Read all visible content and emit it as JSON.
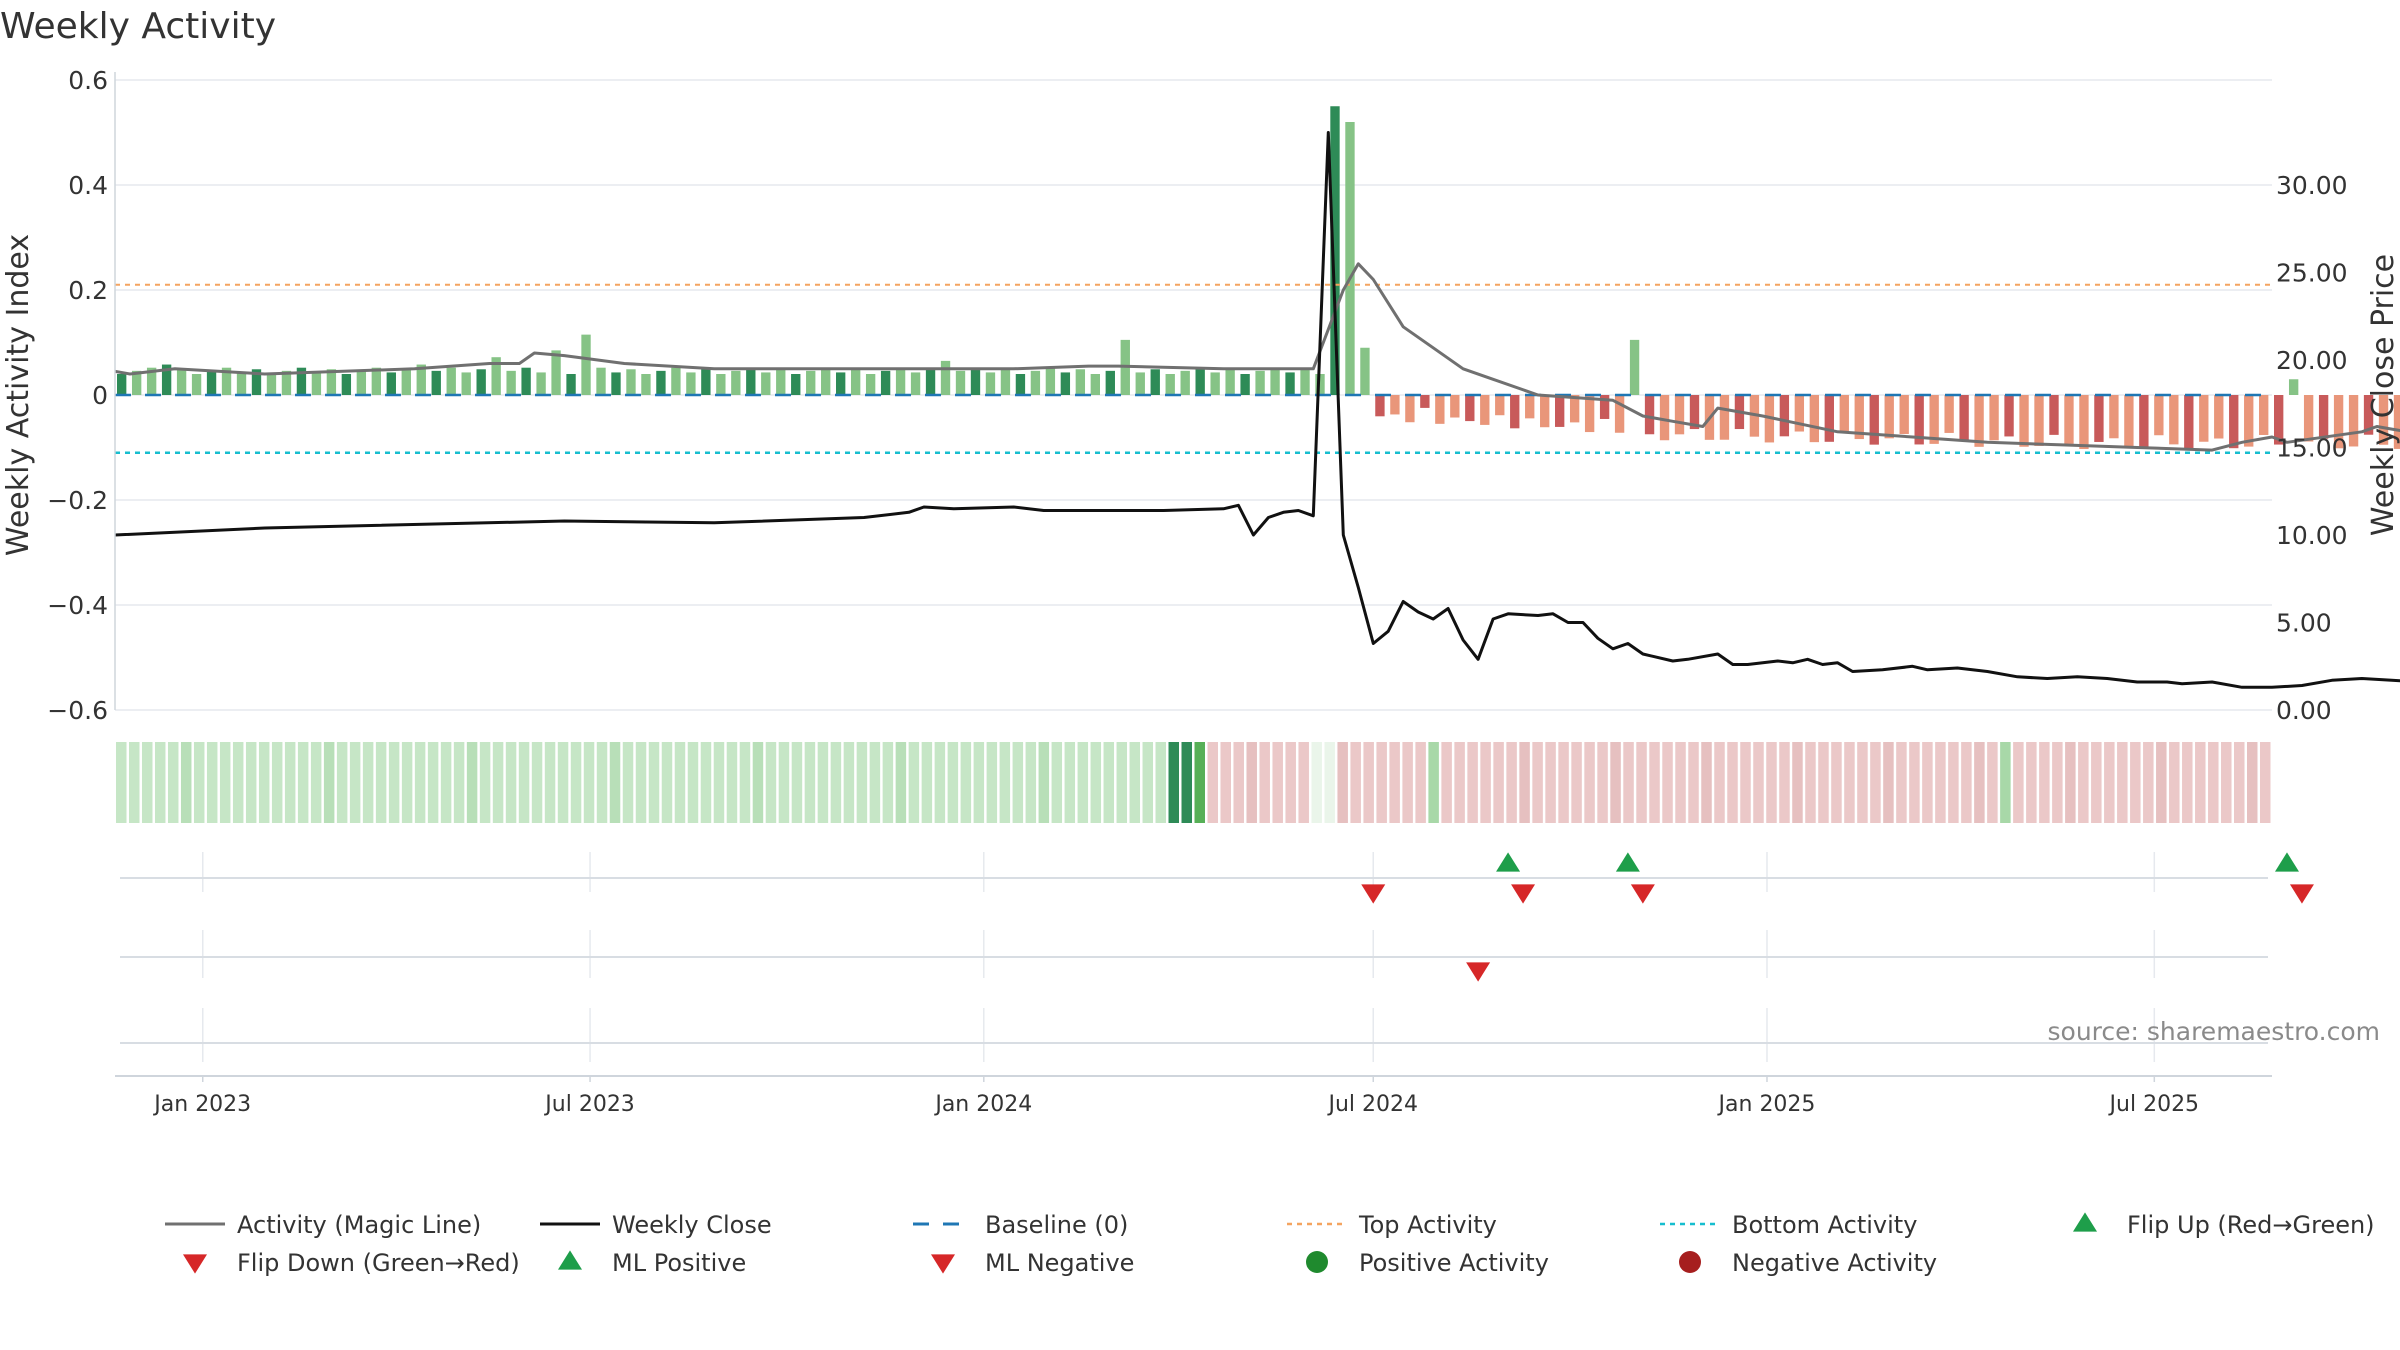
{
  "chart_data": {
    "type": "bar",
    "title": "Weekly Activity",
    "source": "source: sharemaestro.com",
    "y_left": {
      "label": "Weekly Activity Index",
      "ylim": [
        -0.6,
        0.6
      ],
      "ticks": [
        "0.6",
        "0.4",
        "0.2",
        "0",
        "−0.2",
        "−0.4",
        "−0.6"
      ]
    },
    "y_right": {
      "label": "Weekly Close Price",
      "ylim": [
        0,
        30
      ],
      "ticks": [
        "30.00",
        "25.00",
        "20.00",
        "15.00",
        "10.00",
        "5.00",
        "0.00"
      ]
    },
    "x_ticks": [
      "Jan 2023",
      "Jul 2023",
      "Jan 2024",
      "Jul 2024",
      "Jan 2025",
      "Jul 2025"
    ],
    "x_tick_dates": [
      "2023-01-01",
      "2023-07-01",
      "2024-01-01",
      "2024-07-01",
      "2025-01-01",
      "2025-07-01"
    ],
    "x_range": [
      "2022-11-21",
      "2025-08-25"
    ],
    "week_start": "2022-11-21",
    "week_count": 146,
    "top_activity": 0.21,
    "bottom_activity": -0.11,
    "grid": true,
    "legend_position": "bottom",
    "colors": {
      "positive_dark": "#2e8b57",
      "positive_light": "#86c386",
      "negative_dark": "#c85a5a",
      "negative_light": "#e9967a",
      "magic_line": "#707070",
      "weekly_close": "#111111",
      "baseline": "#1f77b4",
      "top_activity": "#f4a460",
      "bottom_activity": "#17becf",
      "flip_up": "#1e9e4a",
      "flip_down": "#d62728",
      "strip_positive": "#c6e6c6",
      "strip_negative": "#ebc8c8"
    },
    "activity_points": [
      [
        0,
        0.045
      ],
      [
        1,
        0.04
      ],
      [
        4,
        0.05
      ],
      [
        10,
        0.04
      ],
      [
        20,
        0.05
      ],
      [
        25,
        0.06
      ],
      [
        27,
        0.06
      ],
      [
        28,
        0.08
      ],
      [
        30,
        0.075
      ],
      [
        34,
        0.06
      ],
      [
        40,
        0.05
      ],
      [
        50,
        0.05
      ],
      [
        55,
        0.05
      ],
      [
        60,
        0.05
      ],
      [
        65,
        0.055
      ],
      [
        67,
        0.055
      ],
      [
        74,
        0.05
      ],
      [
        78,
        0.05
      ],
      [
        79,
        0.05
      ],
      [
        80,
        0.05
      ],
      [
        82,
        0.2
      ],
      [
        83,
        0.25
      ],
      [
        84,
        0.22
      ],
      [
        86,
        0.13
      ],
      [
        88,
        0.09
      ],
      [
        90,
        0.05
      ],
      [
        92,
        0.03
      ],
      [
        95,
        0.0
      ],
      [
        100,
        -0.01
      ],
      [
        102,
        -0.04
      ],
      [
        104,
        -0.05
      ],
      [
        106,
        -0.06
      ],
      [
        107,
        -0.025
      ],
      [
        110,
        -0.04
      ],
      [
        115,
        -0.07
      ],
      [
        120,
        -0.08
      ],
      [
        125,
        -0.09
      ],
      [
        130,
        -0.095
      ],
      [
        135,
        -0.1
      ],
      [
        140,
        -0.105
      ],
      [
        142,
        -0.09
      ],
      [
        144,
        -0.08
      ],
      [
        145,
        -0.09
      ],
      [
        150,
        -0.07
      ],
      [
        151,
        -0.06
      ],
      [
        152,
        -0.065
      ],
      [
        155,
        -0.08
      ],
      [
        160,
        -0.095
      ],
      [
        162,
        -0.098
      ],
      [
        164,
        -0.1
      ],
      [
        165,
        -0.095
      ]
    ],
    "close_points": [
      [
        0,
        10.0
      ],
      [
        10,
        10.4
      ],
      [
        30,
        10.8
      ],
      [
        40,
        10.7
      ],
      [
        50,
        11.0
      ],
      [
        53,
        11.3
      ],
      [
        54,
        11.6
      ],
      [
        56,
        11.5
      ],
      [
        60,
        11.6
      ],
      [
        62,
        11.4
      ],
      [
        70,
        11.4
      ],
      [
        74,
        11.5
      ],
      [
        75,
        11.7
      ],
      [
        76,
        10.0
      ],
      [
        77,
        11.0
      ],
      [
        78,
        11.3
      ],
      [
        79,
        11.4
      ],
      [
        80,
        11.1
      ],
      [
        81,
        33.0
      ],
      [
        82,
        10.0
      ],
      [
        83,
        7.0
      ],
      [
        84,
        3.8
      ],
      [
        85,
        4.5
      ],
      [
        86,
        6.2
      ],
      [
        87,
        5.6
      ],
      [
        88,
        5.2
      ],
      [
        89,
        5.8
      ],
      [
        90,
        4.0
      ],
      [
        91,
        2.9
      ],
      [
        92,
        5.2
      ],
      [
        93,
        5.5
      ],
      [
        95,
        5.4
      ],
      [
        96,
        5.5
      ],
      [
        97,
        5.0
      ],
      [
        98,
        5.0
      ],
      [
        99,
        4.1
      ],
      [
        100,
        3.5
      ],
      [
        101,
        3.8
      ],
      [
        102,
        3.2
      ],
      [
        104,
        2.8
      ],
      [
        105,
        2.9
      ],
      [
        107,
        3.2
      ],
      [
        108,
        2.6
      ],
      [
        109,
        2.6
      ],
      [
        111,
        2.8
      ],
      [
        112,
        2.7
      ],
      [
        113,
        2.9
      ],
      [
        114,
        2.6
      ],
      [
        115,
        2.7
      ],
      [
        116,
        2.2
      ],
      [
        118,
        2.3
      ],
      [
        120,
        2.5
      ],
      [
        121,
        2.3
      ],
      [
        123,
        2.4
      ],
      [
        124,
        2.3
      ],
      [
        125,
        2.2
      ],
      [
        127,
        1.9
      ],
      [
        129,
        1.8
      ],
      [
        131,
        1.9
      ],
      [
        133,
        1.8
      ],
      [
        135,
        1.6
      ],
      [
        137,
        1.6
      ],
      [
        138,
        1.5
      ],
      [
        140,
        1.6
      ],
      [
        142,
        1.3
      ],
      [
        144,
        1.3
      ],
      [
        146,
        1.4
      ],
      [
        148,
        1.7
      ],
      [
        150,
        1.8
      ],
      [
        152,
        1.7
      ],
      [
        154,
        1.6
      ],
      [
        155,
        1.5
      ],
      [
        156,
        1.6
      ],
      [
        157,
        1.5
      ],
      [
        158,
        1.6
      ],
      [
        160,
        1.6
      ],
      [
        162,
        1.5
      ],
      [
        165,
        1.7
      ]
    ],
    "flip_up_weeks": [
      93,
      101,
      145
    ],
    "flip_down_weeks": [
      84,
      94,
      102,
      146
    ],
    "ml_negative_weeks": [
      91
    ],
    "legend": [
      {
        "label": "Activity (Magic Line)",
        "symbol": "line-gray"
      },
      {
        "label": "Weekly Close",
        "symbol": "line-black"
      },
      {
        "label": "Baseline (0)",
        "symbol": "dash-blue"
      },
      {
        "label": "Top Activity",
        "symbol": "dot-orange"
      },
      {
        "label": "Bottom Activity",
        "symbol": "dot-cyan"
      },
      {
        "label": "Flip Up (Red→Green)",
        "symbol": "triangle-up-green"
      },
      {
        "label": "Flip Down (Green→Red)",
        "symbol": "triangle-down-red"
      },
      {
        "label": "ML Positive",
        "symbol": "triangle-up-green"
      },
      {
        "label": "ML Negative",
        "symbol": "triangle-down-red"
      },
      {
        "label": "Positive Activity",
        "symbol": "circle-green"
      },
      {
        "label": "Negative Activity",
        "symbol": "circle-red"
      }
    ]
  }
}
